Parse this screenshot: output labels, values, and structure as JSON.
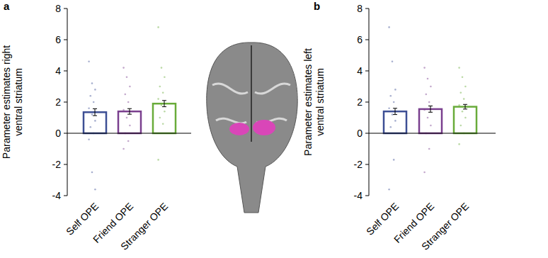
{
  "chart_data": [
    {
      "type": "bar",
      "title": "a",
      "y_label": [
        "Parameter estimates right",
        "ventral striatum"
      ],
      "categories": [
        "Self OPE",
        "Friend OPE",
        "Stranger OPE"
      ],
      "values": [
        1.35,
        1.4,
        1.9
      ],
      "errors": [
        0.22,
        0.18,
        0.2
      ],
      "points": [
        [
          4.6,
          3.2,
          2.8,
          2.4,
          2.0,
          1.6,
          1.2,
          0.8,
          0.4,
          0.0,
          -0.4,
          -2.5,
          -3.6
        ],
        [
          4.2,
          3.6,
          3.0,
          2.5,
          2.0,
          1.5,
          1.0,
          0.5,
          0.0,
          -0.5,
          -1.0
        ],
        [
          6.8,
          4.2,
          3.6,
          3.0,
          2.6,
          2.2,
          1.8,
          1.4,
          1.0,
          0.6,
          -1.7
        ]
      ],
      "colors": [
        "#3d4f94",
        "#7a3f8e",
        "#69ab3a"
      ],
      "ylim": [
        -4,
        8
      ],
      "yticks": [
        -4,
        -2,
        0,
        2,
        4,
        6,
        8
      ]
    },
    {
      "type": "bar",
      "title": "b",
      "y_label": [
        "Parameter estimates left",
        "ventral striatum"
      ],
      "categories": [
        "Self OPE",
        "Friend OPE",
        "Stranger OPE"
      ],
      "values": [
        1.4,
        1.55,
        1.7
      ],
      "errors": [
        0.2,
        0.2,
        0.15
      ],
      "points": [
        [
          6.8,
          4.6,
          2.8,
          2.4,
          2.0,
          1.6,
          1.2,
          0.8,
          0.4,
          -1.7,
          -3.6
        ],
        [
          4.2,
          3.5,
          3.0,
          2.5,
          2.0,
          1.5,
          1.0,
          0.5,
          0.0,
          -1.0,
          -2.5
        ],
        [
          4.2,
          3.6,
          3.0,
          2.6,
          2.2,
          1.8,
          1.4,
          1.0,
          0.5,
          0.0,
          -0.7
        ]
      ],
      "colors": [
        "#3d4f94",
        "#7a3f8e",
        "#69ab3a"
      ],
      "ylim": [
        -4,
        8
      ],
      "yticks": [
        -4,
        -2,
        0,
        2,
        4,
        6,
        8
      ]
    }
  ]
}
